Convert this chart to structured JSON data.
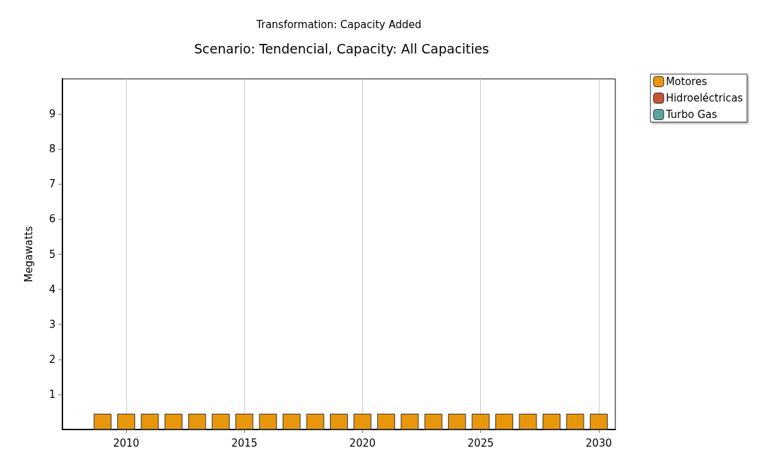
{
  "chart_data": {
    "type": "bar",
    "title": "Transformation: Capacity Added",
    "subtitle": "Scenario: Tendencial, Capacity: All Capacities",
    "ylabel": "Megawatts",
    "x": [
      2009,
      2010,
      2011,
      2012,
      2013,
      2014,
      2015,
      2016,
      2017,
      2018,
      2019,
      2020,
      2021,
      2022,
      2023,
      2024,
      2025,
      2026,
      2027,
      2028,
      2029,
      2030
    ],
    "series": [
      {
        "name": "Motores",
        "color": "#e8960c",
        "values": [
          0.45,
          0.45,
          0.45,
          0.45,
          0.45,
          0.45,
          0.45,
          0.45,
          0.45,
          0.45,
          0.45,
          0.45,
          0.45,
          0.45,
          0.45,
          0.45,
          0.45,
          0.45,
          0.45,
          0.45,
          0.45,
          0.45
        ]
      },
      {
        "name": "Hidroeléctricas",
        "color": "#c85535",
        "values": [
          0,
          0,
          0,
          0,
          0,
          0,
          0,
          0,
          0,
          0,
          0,
          0,
          0,
          0,
          0,
          0,
          0,
          0,
          0,
          0,
          0,
          0
        ]
      },
      {
        "name": "Turbo Gas",
        "color": "#5ba59f",
        "values": [
          0,
          0,
          0,
          0,
          0,
          0,
          0,
          0,
          0,
          0,
          0,
          0,
          0,
          0,
          0,
          0,
          0,
          0,
          0,
          0,
          0,
          0
        ]
      }
    ],
    "stacked": true,
    "xlim": [
      2007.3,
      2030.7
    ],
    "xticks": [
      2010,
      2015,
      2020,
      2025,
      2030
    ],
    "ylim": [
      0,
      10
    ],
    "yticks": [
      1,
      2,
      3,
      4,
      5,
      6,
      7,
      8,
      9
    ],
    "grid": "x",
    "legend": "top right"
  }
}
